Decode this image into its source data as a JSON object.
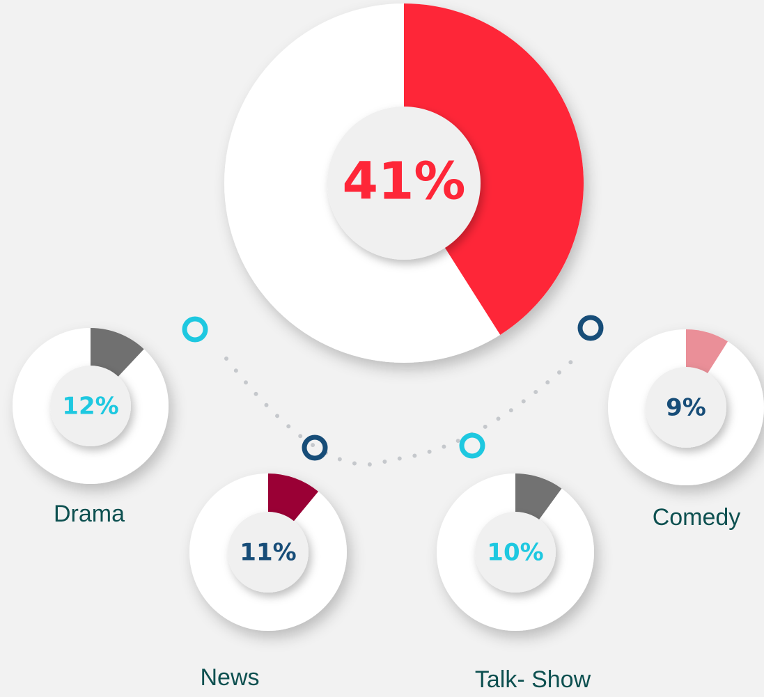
{
  "chart_data": [
    {
      "type": "pie",
      "categories": [
        null
      ],
      "values": [
        41
      ],
      "value_labels": [
        "41%"
      ],
      "color": "#fe2638",
      "label_color": "#fe2638"
    },
    {
      "type": "pie",
      "categories": [
        "Drama"
      ],
      "values": [
        12
      ],
      "value_labels": [
        "12%"
      ],
      "color": "#707070",
      "label_color": "#1ec8e0"
    },
    {
      "type": "pie",
      "categories": [
        "News"
      ],
      "values": [
        11
      ],
      "value_labels": [
        "11%"
      ],
      "color": "#9a0035",
      "label_color": "#174d78"
    },
    {
      "type": "pie",
      "categories": [
        "Talk- Show"
      ],
      "values": [
        10
      ],
      "value_labels": [
        "10%"
      ],
      "color": "#727272",
      "label_color": "#1ec8e0"
    },
    {
      "type": "pie",
      "categories": [
        "Comedy"
      ],
      "values": [
        9
      ],
      "value_labels": [
        "9%"
      ],
      "color": "#ea8f98",
      "label_color": "#174d78"
    }
  ]
}
